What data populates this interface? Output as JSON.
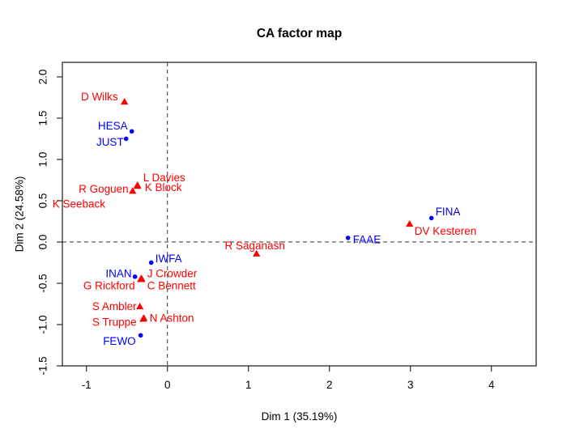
{
  "figure": {
    "title": "CA factor map",
    "xlabel": "Dim 1 (35.19%)",
    "ylabel": "Dim 2 (24.58%)"
  },
  "colors": {
    "row_points": "#ff0000",
    "col_points": "#0000ff",
    "axis": "#2b2b2b",
    "reference_line": "#4a4a4a",
    "background": "#ffffff"
  },
  "chart_data": {
    "type": "scatter",
    "title": "CA factor map",
    "xlabel": "Dim 1 (35.19%)",
    "ylabel": "Dim 2 (24.58%)",
    "xlim": [
      -1.297,
      4.553
    ],
    "ylim": [
      -1.5,
      2.176
    ],
    "x_ticks": [
      {
        "v": -1,
        "label": "-1"
      },
      {
        "v": 0,
        "label": "0"
      },
      {
        "v": 1,
        "label": "1"
      },
      {
        "v": 2,
        "label": "2"
      },
      {
        "v": 3,
        "label": "3"
      },
      {
        "v": 4,
        "label": "4"
      }
    ],
    "y_ticks": [
      {
        "v": 2.0,
        "label": "2.0"
      },
      {
        "v": 1.5,
        "label": "1.5"
      },
      {
        "v": 1.0,
        "label": "1.0"
      },
      {
        "v": 0.5,
        "label": "0.5"
      },
      {
        "v": 0.0,
        "label": "0.0"
      },
      {
        "v": -0.5,
        "label": "-0.5"
      },
      {
        "v": -1.0,
        "label": "-1.0"
      },
      {
        "v": -1.5,
        "label": "-1.5"
      }
    ],
    "grid": "off",
    "legend": "none",
    "reference_lines": [
      {
        "axis": "h",
        "at": 0,
        "style": "dashed"
      },
      {
        "axis": "v",
        "at": 0,
        "style": "dashed"
      }
    ],
    "series": [
      {
        "name": "rows",
        "marker": "triangle",
        "color": "#ff0000",
        "points": [
          {
            "label": "D Wilks",
            "x": -0.53,
            "y": 1.7,
            "anchor": "end",
            "dx": -8,
            "dy": -6
          },
          {
            "label": "L Davies",
            "x": -0.37,
            "y": 0.69,
            "anchor": "start",
            "dx": 7,
            "dy": -9
          },
          {
            "label": "K Block",
            "x": -0.37,
            "y": 0.68,
            "anchor": "start",
            "dx": 9,
            "dy": 2
          },
          {
            "label": "R Goguen",
            "x": -0.43,
            "y": 0.62,
            "anchor": "end",
            "dx": -5,
            "dy": -2
          },
          {
            "label": "K Seeback",
            "x": -1.46,
            "y": 0.48,
            "anchor": "start",
            "dx": 4,
            "dy": 2
          },
          {
            "label": "R Saganash",
            "x": 1.1,
            "y": -0.14,
            "anchor": "middle",
            "dx": -2,
            "dy": -10
          },
          {
            "label": "DV Kesteren",
            "x": 2.99,
            "y": 0.22,
            "anchor": "start",
            "dx": 6,
            "dy": 9
          },
          {
            "label": "J Crowder",
            "x": -0.32,
            "y": -0.44,
            "anchor": "start",
            "dx": 7,
            "dy": -6
          },
          {
            "label": "C Bennett",
            "x": -0.32,
            "y": -0.45,
            "anchor": "start",
            "dx": 7,
            "dy": 8
          },
          {
            "label": "G Rickford",
            "x": -0.33,
            "y": -0.45,
            "anchor": "end",
            "dx": -7,
            "dy": 8
          },
          {
            "label": "S Ambler",
            "x": -0.34,
            "y": -0.78,
            "anchor": "end",
            "dx": -4,
            "dy": 0
          },
          {
            "label": "N Ashton",
            "x": -0.29,
            "y": -0.92,
            "anchor": "start",
            "dx": 7,
            "dy": 0
          },
          {
            "label": "S Truppe",
            "x": -0.3,
            "y": -0.93,
            "anchor": "end",
            "dx": -8,
            "dy": 4
          }
        ]
      },
      {
        "name": "columns",
        "marker": "circle",
        "color": "#0000ff",
        "points": [
          {
            "label": "HESA",
            "x": -0.44,
            "y": 1.34,
            "anchor": "end",
            "dx": -5,
            "dy": -7
          },
          {
            "label": "JUST",
            "x": -0.51,
            "y": 1.25,
            "anchor": "end",
            "dx": -3,
            "dy": 4
          },
          {
            "label": "FINA",
            "x": 3.26,
            "y": 0.29,
            "anchor": "start",
            "dx": 5,
            "dy": -8
          },
          {
            "label": "FAAE",
            "x": 2.23,
            "y": 0.05,
            "anchor": "start",
            "dx": 6,
            "dy": 2
          },
          {
            "label": "IWFA",
            "x": -0.2,
            "y": -0.25,
            "anchor": "start",
            "dx": 5,
            "dy": -5
          },
          {
            "label": "INAN",
            "x": -0.4,
            "y": -0.42,
            "anchor": "end",
            "dx": -4,
            "dy": -4
          },
          {
            "label": "FEWO",
            "x": -0.33,
            "y": -1.13,
            "anchor": "end",
            "dx": -6,
            "dy": 7
          }
        ]
      }
    ]
  }
}
